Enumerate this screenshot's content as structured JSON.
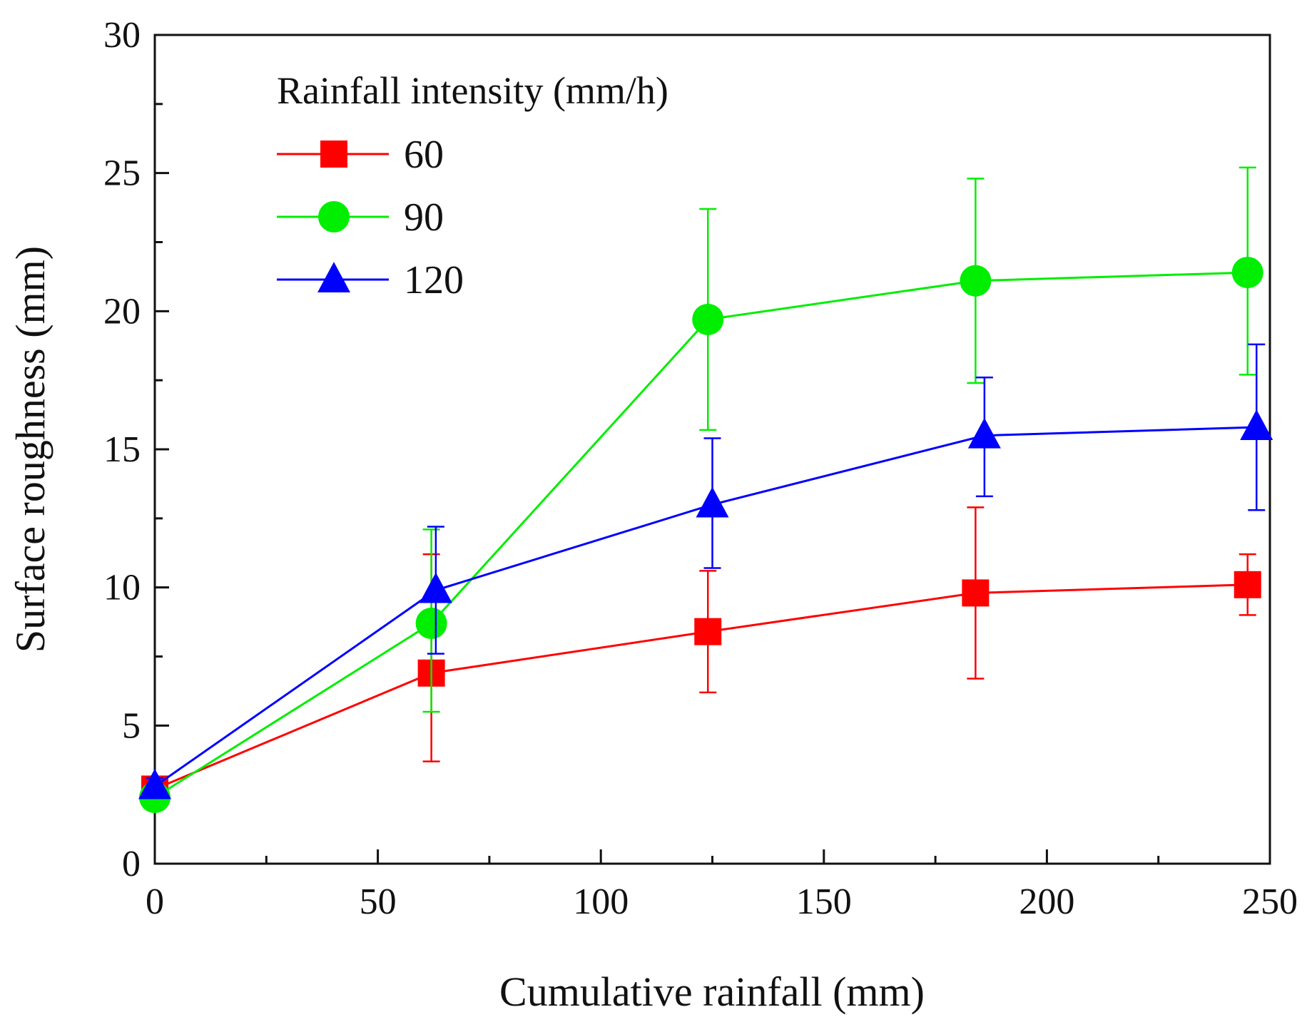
{
  "chart_data": {
    "type": "line",
    "xlabel": "Cumulative rainfall (mm)",
    "ylabel": "Surface roughness (mm)",
    "xlim": [
      0,
      250
    ],
    "ylim": [
      0,
      30
    ],
    "x_ticks": [
      "0",
      "50",
      "100",
      "150",
      "200",
      "250"
    ],
    "y_ticks": [
      "0",
      "5",
      "10",
      "15",
      "20",
      "25",
      "30"
    ],
    "legend": {
      "title": "Rainfall intensity (mm/h)",
      "position": "top-left"
    },
    "grid": false,
    "series": [
      {
        "name": "60",
        "color": "#ff0000",
        "marker": "square",
        "x": [
          0,
          62,
          124,
          184,
          245
        ],
        "y": [
          2.7,
          6.9,
          8.4,
          9.8,
          10.1
        ],
        "err_low": [
          0.3,
          3.2,
          2.2,
          3.1,
          1.1
        ],
        "err_high": [
          0.3,
          4.3,
          2.2,
          3.1,
          1.1
        ]
      },
      {
        "name": "90",
        "color": "#00ee00",
        "marker": "circle",
        "x": [
          0,
          62,
          124,
          184,
          245
        ],
        "y": [
          2.4,
          8.7,
          19.7,
          21.1,
          21.4
        ],
        "err_low": [
          0.3,
          3.2,
          4.0,
          3.7,
          3.7
        ],
        "err_high": [
          0.3,
          3.4,
          4.0,
          3.7,
          3.8
        ]
      },
      {
        "name": "120",
        "color": "#0000ff",
        "marker": "triangle",
        "x": [
          0,
          63,
          125,
          186,
          247
        ],
        "y": [
          2.8,
          9.9,
          13.0,
          15.5,
          15.8
        ],
        "err_low": [
          0.3,
          2.3,
          2.3,
          2.2,
          3.0
        ],
        "err_high": [
          0.3,
          2.3,
          2.4,
          2.1,
          3.0
        ]
      }
    ]
  }
}
